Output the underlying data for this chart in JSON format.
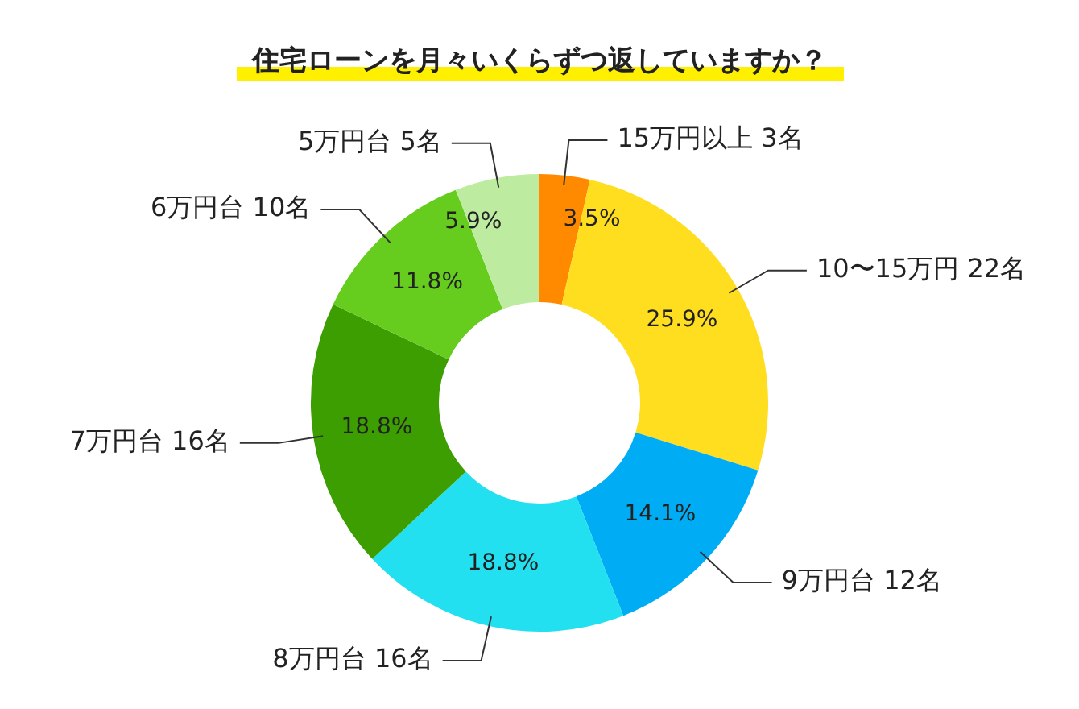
{
  "chart_data": {
    "type": "donut",
    "title": "住宅ローンを月々いくらずつ返していますか？",
    "categories": [
      "15万円以上 3名",
      "10〜15万円 22名",
      "9万円台 12名",
      "8万円台 16名",
      "7万円台 16名",
      "6万円台 10名",
      "5万円台 5名"
    ],
    "values": [
      3.5,
      25.9,
      14.1,
      18.8,
      18.8,
      11.8,
      5.9
    ],
    "value_labels": [
      "3.5%",
      "25.9%",
      "14.1%",
      "18.8%",
      "18.8%",
      "11.8%",
      "5.9%"
    ],
    "colors": [
      "#ff8a00",
      "#ffdd1f",
      "#00adf5",
      "#22e0f0",
      "#3c9e00",
      "#66cc1e",
      "#bdeca0"
    ],
    "legend": false
  }
}
